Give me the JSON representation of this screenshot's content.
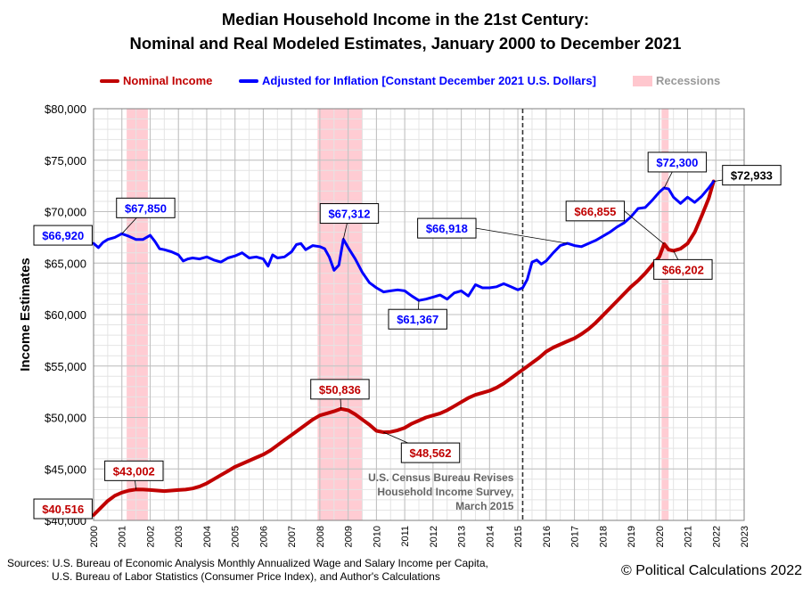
{
  "chart_data": {
    "type": "line",
    "title": "Median Household Income in the 21st Century:",
    "subtitle": "Nominal and Real Modeled Estimates, January 2000 to December 2021",
    "ylabel": "Income Estimates",
    "xlabel": "",
    "ylim": [
      40000,
      80000
    ],
    "xlim": [
      2000,
      2023
    ],
    "grid": true,
    "legend_position": "top",
    "y_ticks": [
      {
        "v": 40000,
        "label": "$40,000"
      },
      {
        "v": 45000,
        "label": "$45,000"
      },
      {
        "v": 50000,
        "label": "$50,000"
      },
      {
        "v": 55000,
        "label": "$55,000"
      },
      {
        "v": 60000,
        "label": "$60,000"
      },
      {
        "v": 65000,
        "label": "$65,000"
      },
      {
        "v": 70000,
        "label": "$70,000"
      },
      {
        "v": 75000,
        "label": "$75,000"
      },
      {
        "v": 80000,
        "label": "$80,000"
      }
    ],
    "x_ticks": [
      "2000",
      "2001",
      "2002",
      "2003",
      "2004",
      "2005",
      "2006",
      "2007",
      "2008",
      "2009",
      "2010",
      "2011",
      "2012",
      "2013",
      "2014",
      "2015",
      "2016",
      "2017",
      "2018",
      "2019",
      "2020",
      "2021",
      "2022",
      "2023"
    ],
    "legend": [
      {
        "label": "Nominal Income",
        "color": "#c00000",
        "kind": "line"
      },
      {
        "label": "Adjusted for Inflation [Constant December 2021 U.S. Dollars]",
        "color": "#0000ff",
        "kind": "line"
      },
      {
        "label": "Recessions",
        "color": "#ffc7ce",
        "kind": "box"
      }
    ],
    "recessions": [
      [
        2001.17,
        2001.92
      ],
      [
        2007.92,
        2009.5
      ],
      [
        2020.08,
        2020.33
      ]
    ],
    "series": [
      {
        "name": "Nominal Income",
        "color": "#c00000",
        "points": [
          [
            2000.0,
            40516
          ],
          [
            2000.25,
            41200
          ],
          [
            2000.5,
            41900
          ],
          [
            2000.75,
            42400
          ],
          [
            2001.0,
            42700
          ],
          [
            2001.25,
            42900
          ],
          [
            2001.5,
            43002
          ],
          [
            2001.75,
            43000
          ],
          [
            2002.0,
            42950
          ],
          [
            2002.25,
            42900
          ],
          [
            2002.5,
            42850
          ],
          [
            2002.75,
            42900
          ],
          [
            2003.0,
            42950
          ],
          [
            2003.25,
            43000
          ],
          [
            2003.5,
            43100
          ],
          [
            2003.75,
            43300
          ],
          [
            2004.0,
            43600
          ],
          [
            2004.25,
            44000
          ],
          [
            2004.5,
            44400
          ],
          [
            2004.75,
            44800
          ],
          [
            2005.0,
            45200
          ],
          [
            2005.25,
            45500
          ],
          [
            2005.5,
            45800
          ],
          [
            2005.75,
            46100
          ],
          [
            2006.0,
            46400
          ],
          [
            2006.25,
            46800
          ],
          [
            2006.5,
            47300
          ],
          [
            2006.75,
            47800
          ],
          [
            2007.0,
            48300
          ],
          [
            2007.25,
            48800
          ],
          [
            2007.5,
            49300
          ],
          [
            2007.75,
            49800
          ],
          [
            2008.0,
            50200
          ],
          [
            2008.25,
            50400
          ],
          [
            2008.5,
            50600
          ],
          [
            2008.75,
            50836
          ],
          [
            2009.0,
            50700
          ],
          [
            2009.25,
            50300
          ],
          [
            2009.5,
            49800
          ],
          [
            2009.75,
            49300
          ],
          [
            2010.0,
            48700
          ],
          [
            2010.25,
            48562
          ],
          [
            2010.5,
            48600
          ],
          [
            2010.75,
            48750
          ],
          [
            2011.0,
            49000
          ],
          [
            2011.25,
            49400
          ],
          [
            2011.5,
            49700
          ],
          [
            2011.75,
            50000
          ],
          [
            2012.0,
            50200
          ],
          [
            2012.25,
            50400
          ],
          [
            2012.5,
            50700
          ],
          [
            2012.75,
            51100
          ],
          [
            2013.0,
            51500
          ],
          [
            2013.25,
            51900
          ],
          [
            2013.5,
            52200
          ],
          [
            2013.75,
            52400
          ],
          [
            2014.0,
            52600
          ],
          [
            2014.25,
            52900
          ],
          [
            2014.5,
            53300
          ],
          [
            2014.75,
            53800
          ],
          [
            2015.0,
            54300
          ],
          [
            2015.25,
            54800
          ],
          [
            2015.5,
            55300
          ],
          [
            2015.75,
            55800
          ],
          [
            2016.0,
            56400
          ],
          [
            2016.25,
            56800
          ],
          [
            2016.5,
            57100
          ],
          [
            2016.75,
            57400
          ],
          [
            2017.0,
            57700
          ],
          [
            2017.25,
            58100
          ],
          [
            2017.5,
            58600
          ],
          [
            2017.75,
            59200
          ],
          [
            2018.0,
            59900
          ],
          [
            2018.25,
            60600
          ],
          [
            2018.5,
            61300
          ],
          [
            2018.75,
            62000
          ],
          [
            2019.0,
            62700
          ],
          [
            2019.25,
            63300
          ],
          [
            2019.5,
            64000
          ],
          [
            2019.75,
            64800
          ],
          [
            2020.0,
            65600
          ],
          [
            2020.17,
            66855
          ],
          [
            2020.33,
            66300
          ],
          [
            2020.5,
            66202
          ],
          [
            2020.75,
            66400
          ],
          [
            2021.0,
            66900
          ],
          [
            2021.25,
            68000
          ],
          [
            2021.5,
            69600
          ],
          [
            2021.75,
            71300
          ],
          [
            2021.92,
            72933
          ]
        ]
      },
      {
        "name": "Adjusted for Inflation [Constant December 2021 U.S. Dollars]",
        "color": "#0000ff",
        "points": [
          [
            2000.0,
            66920
          ],
          [
            2000.17,
            66500
          ],
          [
            2000.33,
            67000
          ],
          [
            2000.5,
            67300
          ],
          [
            2000.75,
            67500
          ],
          [
            2001.0,
            67850
          ],
          [
            2001.25,
            67600
          ],
          [
            2001.5,
            67300
          ],
          [
            2001.75,
            67300
          ],
          [
            2002.0,
            67700
          ],
          [
            2002.17,
            67100
          ],
          [
            2002.33,
            66400
          ],
          [
            2002.5,
            66300
          ],
          [
            2002.75,
            66100
          ],
          [
            2003.0,
            65800
          ],
          [
            2003.17,
            65200
          ],
          [
            2003.33,
            65400
          ],
          [
            2003.5,
            65500
          ],
          [
            2003.75,
            65400
          ],
          [
            2004.0,
            65600
          ],
          [
            2004.25,
            65300
          ],
          [
            2004.5,
            65100
          ],
          [
            2004.75,
            65500
          ],
          [
            2005.0,
            65700
          ],
          [
            2005.25,
            66000
          ],
          [
            2005.5,
            65500
          ],
          [
            2005.75,
            65600
          ],
          [
            2006.0,
            65400
          ],
          [
            2006.17,
            64700
          ],
          [
            2006.33,
            65800
          ],
          [
            2006.5,
            65500
          ],
          [
            2006.75,
            65600
          ],
          [
            2007.0,
            66100
          ],
          [
            2007.17,
            66800
          ],
          [
            2007.33,
            66900
          ],
          [
            2007.5,
            66300
          ],
          [
            2007.75,
            66700
          ],
          [
            2008.0,
            66600
          ],
          [
            2008.17,
            66400
          ],
          [
            2008.33,
            65600
          ],
          [
            2008.5,
            64300
          ],
          [
            2008.67,
            64800
          ],
          [
            2008.83,
            67312
          ],
          [
            2009.0,
            66500
          ],
          [
            2009.25,
            65400
          ],
          [
            2009.5,
            64100
          ],
          [
            2009.75,
            63100
          ],
          [
            2010.0,
            62600
          ],
          [
            2010.25,
            62200
          ],
          [
            2010.5,
            62300
          ],
          [
            2010.75,
            62400
          ],
          [
            2011.0,
            62300
          ],
          [
            2011.25,
            61800
          ],
          [
            2011.5,
            61367
          ],
          [
            2011.75,
            61500
          ],
          [
            2012.0,
            61700
          ],
          [
            2012.25,
            61900
          ],
          [
            2012.5,
            61500
          ],
          [
            2012.75,
            62100
          ],
          [
            2013.0,
            62300
          ],
          [
            2013.25,
            61800
          ],
          [
            2013.5,
            62900
          ],
          [
            2013.75,
            62600
          ],
          [
            2014.0,
            62600
          ],
          [
            2014.25,
            62700
          ],
          [
            2014.5,
            63000
          ],
          [
            2014.75,
            62700
          ],
          [
            2015.0,
            62400
          ],
          [
            2015.17,
            62600
          ],
          [
            2015.33,
            63400
          ],
          [
            2015.5,
            65100
          ],
          [
            2015.67,
            65300
          ],
          [
            2015.83,
            64900
          ],
          [
            2016.0,
            65200
          ],
          [
            2016.25,
            66000
          ],
          [
            2016.5,
            66700
          ],
          [
            2016.75,
            66918
          ],
          [
            2017.0,
            66700
          ],
          [
            2017.25,
            66600
          ],
          [
            2017.5,
            66900
          ],
          [
            2017.75,
            67200
          ],
          [
            2018.0,
            67600
          ],
          [
            2018.25,
            68000
          ],
          [
            2018.5,
            68500
          ],
          [
            2018.75,
            68900
          ],
          [
            2019.0,
            69500
          ],
          [
            2019.25,
            70300
          ],
          [
            2019.5,
            70400
          ],
          [
            2019.75,
            71100
          ],
          [
            2020.0,
            71900
          ],
          [
            2020.17,
            72300
          ],
          [
            2020.33,
            72200
          ],
          [
            2020.5,
            71400
          ],
          [
            2020.75,
            70800
          ],
          [
            2021.0,
            71400
          ],
          [
            2021.25,
            70900
          ],
          [
            2021.5,
            71500
          ],
          [
            2021.75,
            72300
          ],
          [
            2021.92,
            72933
          ]
        ]
      }
    ],
    "annotations": [
      {
        "text": "$40,516",
        "series": 0,
        "x": 2000.0,
        "y": 40516
      },
      {
        "text": "$43,002",
        "series": 0,
        "x": 2001.5,
        "y": 43002
      },
      {
        "text": "$50,836",
        "series": 0,
        "x": 2008.75,
        "y": 50836
      },
      {
        "text": "$48,562",
        "series": 0,
        "x": 2010.25,
        "y": 48562
      },
      {
        "text": "$66,855",
        "series": 0,
        "x": 2020.17,
        "y": 66855
      },
      {
        "text": "$66,202",
        "series": 0,
        "x": 2020.5,
        "y": 66202
      },
      {
        "text": "$66,920",
        "series": 1,
        "x": 2000.0,
        "y": 66920
      },
      {
        "text": "$67,850",
        "series": 1,
        "x": 2001.0,
        "y": 67850
      },
      {
        "text": "$67,312",
        "series": 1,
        "x": 2008.83,
        "y": 67312
      },
      {
        "text": "$61,367",
        "series": 1,
        "x": 2011.5,
        "y": 61367
      },
      {
        "text": "$66,918",
        "series": 1,
        "x": 2016.75,
        "y": 66918
      },
      {
        "text": "$72,300",
        "series": 1,
        "x": 2020.17,
        "y": 72300
      },
      {
        "text": "$72,933",
        "series": 2,
        "x": 2021.92,
        "y": 72933
      }
    ],
    "event": {
      "x": 2015.17,
      "lines": [
        "U.S. Census Bureau Revises",
        "Household Income Survey,",
        "March 2015"
      ]
    }
  },
  "footer": {
    "sources_line1": "Sources: U.S. Bureau of Economic Analysis Monthly Annualized Wage and Salary Income per Capita,",
    "sources_line2": "U.S. Bureau of Labor Statistics (Consumer Price Index), and Author's Calculations",
    "credit": "© Political Calculations 2022"
  }
}
